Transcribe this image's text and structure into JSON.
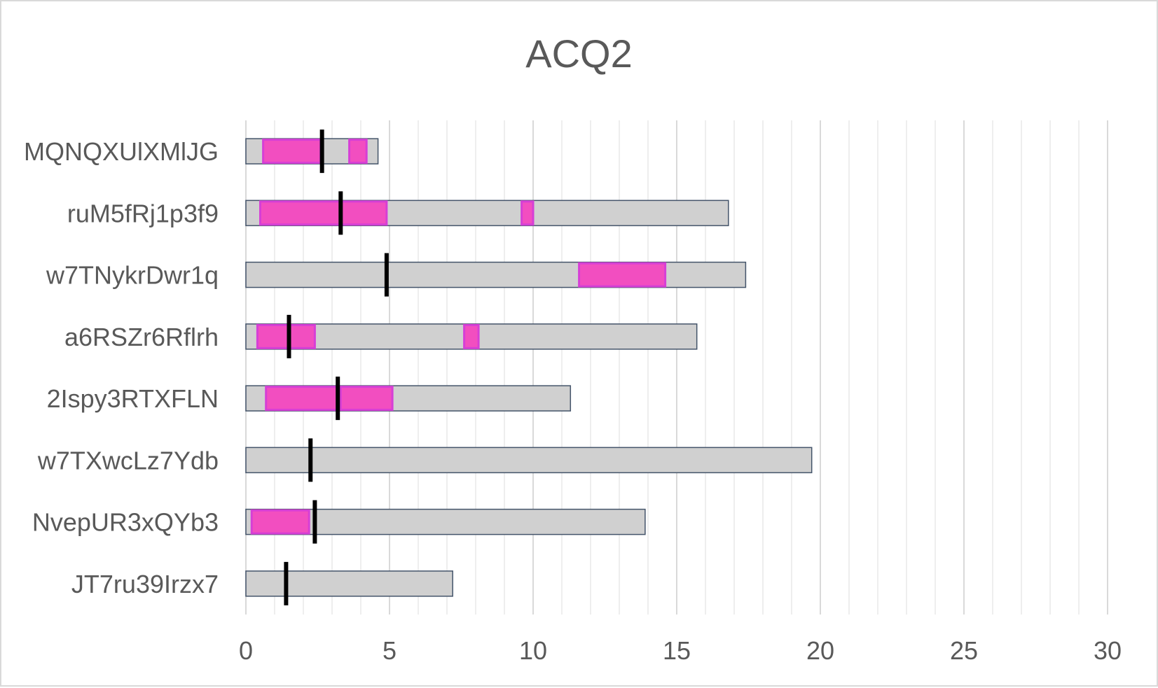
{
  "chart_data": {
    "type": "bar",
    "orientation": "horizontal",
    "title": "ACQ2",
    "xlabel": "",
    "ylabel": "",
    "xlim": [
      0,
      30
    ],
    "x_ticks": [
      0,
      5,
      10,
      15,
      20,
      25,
      30
    ],
    "minor_step": 1,
    "grid": true,
    "legend": "none",
    "categories": [
      "MQNQXUlXMlJG",
      "ruM5fRj1p3f9",
      "w7TNykrDwr1q",
      "a6RSZr6Rflrh",
      "2Ispy3RTXFLN",
      "w7TXwcLz7Ydb",
      "NvepUR3xQYb3",
      "JT7ru39Irzx7"
    ],
    "bars": [
      {
        "value": 4.6,
        "highlights": [
          [
            0.6,
            2.6
          ],
          [
            3.6,
            4.2
          ]
        ],
        "marker": 2.65
      },
      {
        "value": 16.8,
        "highlights": [
          [
            0.5,
            4.9
          ],
          [
            9.6,
            10.0
          ]
        ],
        "marker": 3.3
      },
      {
        "value": 17.4,
        "highlights": [
          [
            11.6,
            14.6
          ]
        ],
        "marker": 4.9
      },
      {
        "value": 15.7,
        "highlights": [
          [
            0.4,
            2.4
          ],
          [
            7.6,
            8.1
          ]
        ],
        "marker": 1.5
      },
      {
        "value": 11.3,
        "highlights": [
          [
            0.7,
            3.2
          ],
          [
            3.3,
            5.1
          ]
        ],
        "marker": 3.2
      },
      {
        "value": 19.7,
        "highlights": [],
        "marker": 2.25
      },
      {
        "value": 13.9,
        "highlights": [
          [
            0.2,
            2.2
          ]
        ],
        "marker": 2.4
      },
      {
        "value": 7.2,
        "highlights": [],
        "marker": 1.4
      }
    ],
    "colors": {
      "bar_fill": "#d0d0d0",
      "bar_stroke": "#44546a",
      "highlight_fill": "#f24ec0",
      "highlight_stroke": "#d63fd6",
      "marker": "#000000",
      "grid_major": "#d9d9d9",
      "grid_minor": "#eeeeee",
      "text": "#595959"
    }
  }
}
